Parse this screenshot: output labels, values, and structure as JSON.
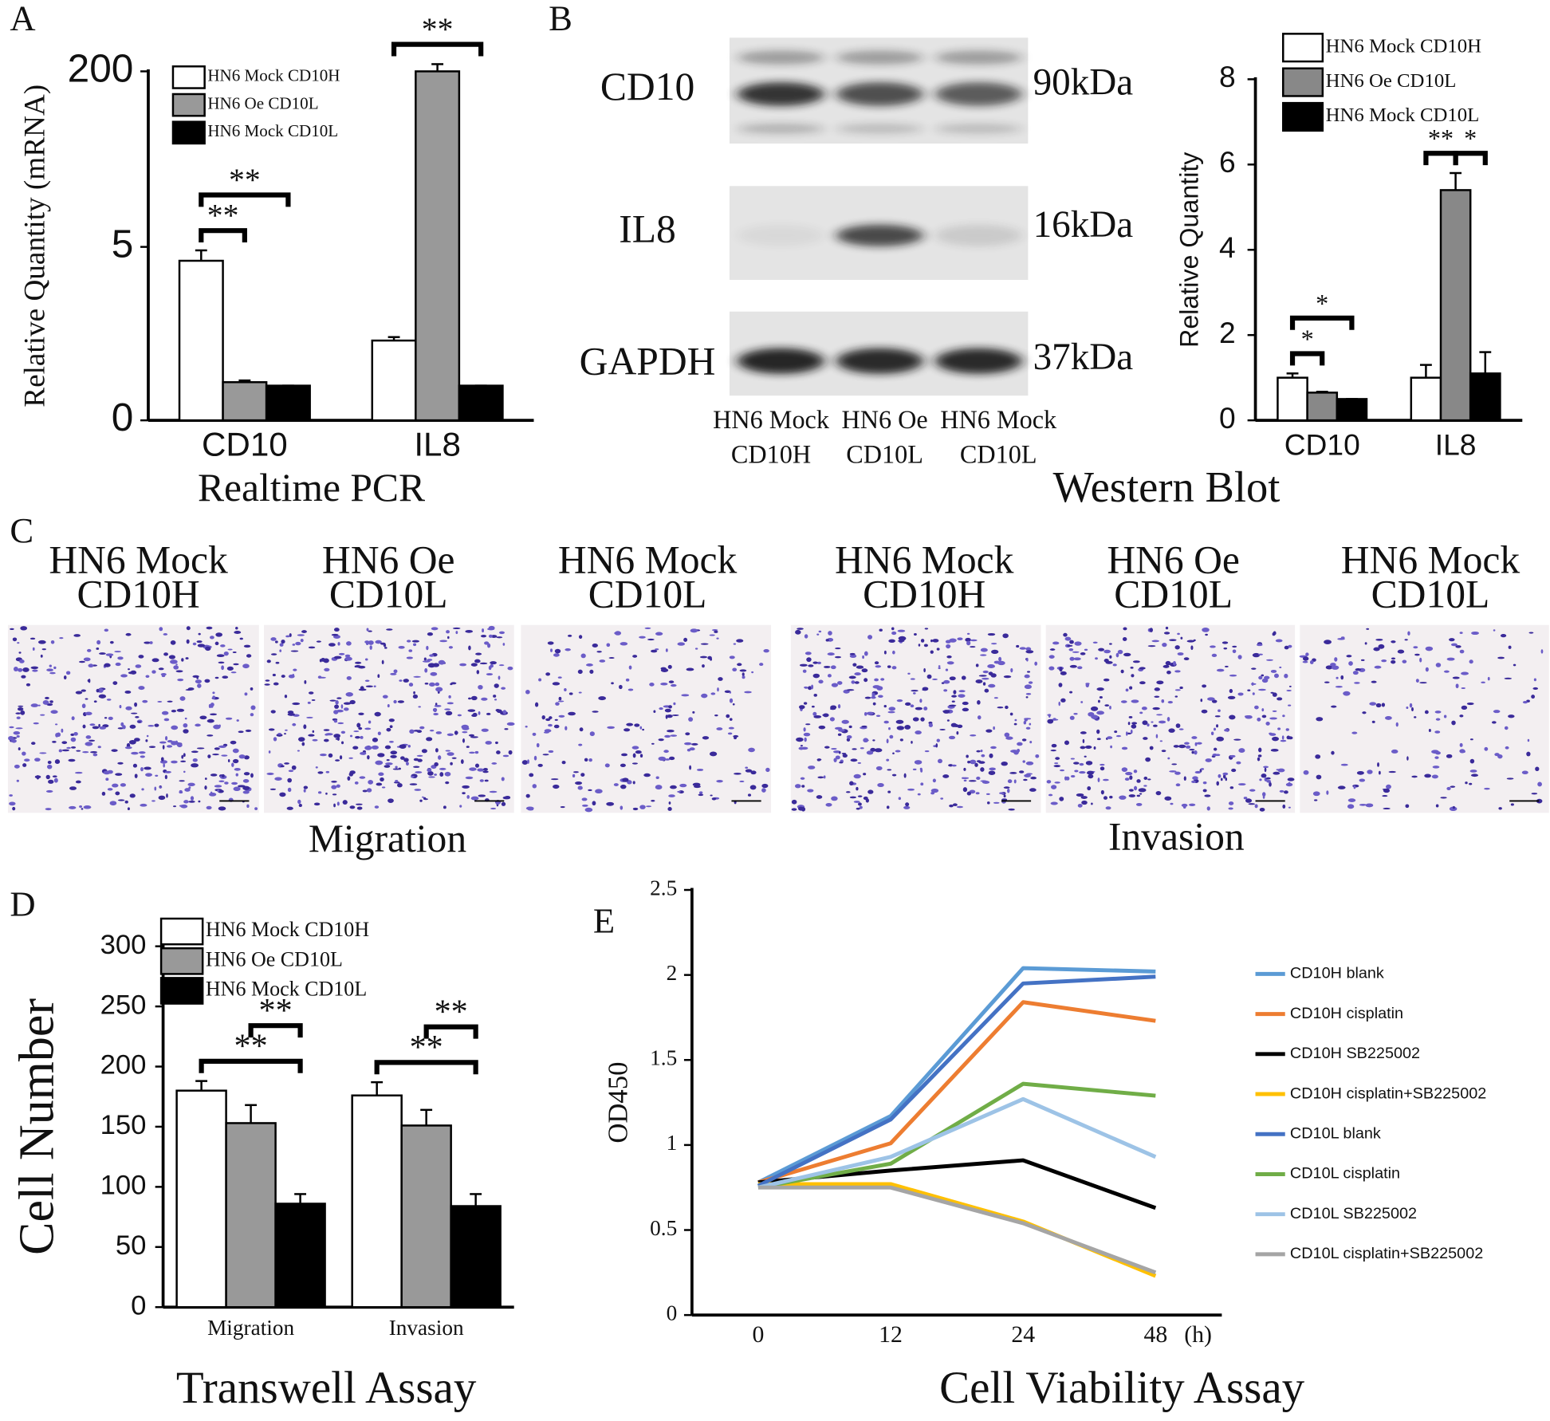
{
  "figure_labels": [
    "A",
    "B",
    "C",
    "D",
    "E"
  ],
  "western_blot": {
    "title": "Western Blot",
    "proteins": [
      {
        "name": "CD10",
        "size": "90kDa"
      },
      {
        "name": "IL8",
        "size": "16kDa"
      },
      {
        "name": "GAPDH",
        "size": "37kDa"
      }
    ],
    "lanes": [
      [
        "HN6 Mock",
        "CD10H"
      ],
      [
        "HN6 Oe",
        "CD10L"
      ],
      [
        "HN6 Mock",
        "CD10L"
      ]
    ]
  },
  "transwell_images": {
    "conditions": [
      [
        "HN6 Mock",
        "CD10H"
      ],
      [
        "HN6 Oe",
        "CD10L"
      ],
      [
        "HN6 Mock",
        "CD10L"
      ]
    ],
    "groups": [
      "Migration",
      "Invasion"
    ]
  },
  "chart_data": [
    {
      "type": "bar",
      "title": "Realtime PCR",
      "ylabel": "Relative Quantity (mRNA)",
      "categories": [
        "CD10",
        "IL8"
      ],
      "series": [
        {
          "name": "HN6 Mock CD10H",
          "color": "#ffffff",
          "values": [
            4.6,
            2.3
          ],
          "errors": [
            0.3,
            0.1
          ]
        },
        {
          "name": "HN6 Oe CD10L",
          "color": "#999999",
          "values": [
            1.1,
            200
          ],
          "errors": [
            0.05,
            8
          ]
        },
        {
          "name": "HN6 Mock CD10L",
          "color": "#000000",
          "values": [
            1,
            1
          ],
          "errors": [
            0,
            0
          ]
        }
      ],
      "ylim": [
        0,
        200
      ],
      "yticks": [
        0,
        5,
        200
      ],
      "axis_break": true,
      "significance": [
        {
          "label": "**",
          "category": 0,
          "from": 0,
          "to": 1
        },
        {
          "label": "**",
          "category": 0,
          "from": 0,
          "to": 2
        },
        {
          "label": "**",
          "category": 1,
          "from": 0,
          "to": 2
        }
      ]
    },
    {
      "type": "bar",
      "ylabel": "Relative Quantity",
      "categories": [
        "CD10",
        "IL8"
      ],
      "series": [
        {
          "name": "HN6 Mock CD10H",
          "color": "#ffffff",
          "values": [
            1.0,
            1.0
          ],
          "errors": [
            0.1,
            0.3
          ]
        },
        {
          "name": "HN6 Oe CD10L",
          "color": "#888888",
          "values": [
            0.65,
            5.4
          ],
          "errors": [
            0.02,
            0.4
          ]
        },
        {
          "name": "HN6 Mock CD10L",
          "color": "#000000",
          "values": [
            0.5,
            1.1
          ],
          "errors": [
            0,
            0.5
          ]
        }
      ],
      "ylim": [
        0,
        8
      ],
      "yticks": [
        0,
        2,
        4,
        6,
        8
      ],
      "significance": [
        {
          "label": "*",
          "category": 0,
          "from": 0,
          "to": 1
        },
        {
          "label": "*",
          "category": 0,
          "from": 0,
          "to": 2
        },
        {
          "label": "**",
          "category": 1,
          "from": 0,
          "to": 1
        },
        {
          "label": "*",
          "category": 1,
          "from": 1,
          "to": 2
        }
      ]
    },
    {
      "type": "bar",
      "title": "Transwell Assay",
      "ylabel": "Cell Number",
      "categories": [
        "Migration",
        "Invasion"
      ],
      "series": [
        {
          "name": "HN6 Mock CD10H",
          "color": "#ffffff",
          "values": [
            180,
            176
          ],
          "errors": [
            8,
            11
          ]
        },
        {
          "name": "HN6 Oe CD10L",
          "color": "#999999",
          "values": [
            153,
            151
          ],
          "errors": [
            15,
            13
          ]
        },
        {
          "name": "HN6 Mock CD10L",
          "color": "#000000",
          "values": [
            86,
            84
          ],
          "errors": [
            8,
            10
          ]
        }
      ],
      "ylim": [
        0,
        300
      ],
      "yticks": [
        0,
        50,
        100,
        150,
        200,
        250,
        300
      ],
      "significance": [
        {
          "label": "**",
          "category": 0,
          "from": 0,
          "to": 2
        },
        {
          "label": "**",
          "category": 0,
          "from": 1,
          "to": 2
        },
        {
          "label": "**",
          "category": 1,
          "from": 0,
          "to": 2
        },
        {
          "label": "**",
          "category": 1,
          "from": 1,
          "to": 2
        }
      ]
    },
    {
      "type": "line",
      "title": "Cell Viability Assay",
      "ylabel": "OD450",
      "categories": [
        "0",
        "12",
        "24",
        "48"
      ],
      "x_unit": "(h)",
      "series": [
        {
          "name": "CD10H blank",
          "color": "#5b9bd5",
          "values": [
            0.78,
            1.17,
            2.04,
            2.02
          ]
        },
        {
          "name": "CD10H cisplatin",
          "color": "#ed7d31",
          "values": [
            0.78,
            1.01,
            1.84,
            1.73
          ]
        },
        {
          "name": "CD10H SB225002",
          "color": "#000000",
          "values": [
            0.78,
            0.85,
            0.91,
            0.63
          ]
        },
        {
          "name": "CD10H cisplatin+SB225002",
          "color": "#ffc000",
          "values": [
            0.77,
            0.77,
            0.55,
            0.23
          ]
        },
        {
          "name": "CD10L blank",
          "color": "#4472c4",
          "values": [
            0.76,
            1.15,
            1.95,
            1.99
          ]
        },
        {
          "name": "CD10L cisplatin",
          "color": "#70ad47",
          "values": [
            0.75,
            0.89,
            1.36,
            1.29
          ]
        },
        {
          "name": "CD10L SB225002",
          "color": "#9dc3e6",
          "values": [
            0.75,
            0.93,
            1.27,
            0.93
          ]
        },
        {
          "name": "CD10L cisplatin+SB225002",
          "color": "#a5a5a5",
          "values": [
            0.75,
            0.75,
            0.54,
            0.25
          ]
        }
      ],
      "ylim": [
        0,
        2.5
      ],
      "yticks": [
        0,
        0.5,
        1,
        1.5,
        2,
        2.5
      ]
    }
  ]
}
